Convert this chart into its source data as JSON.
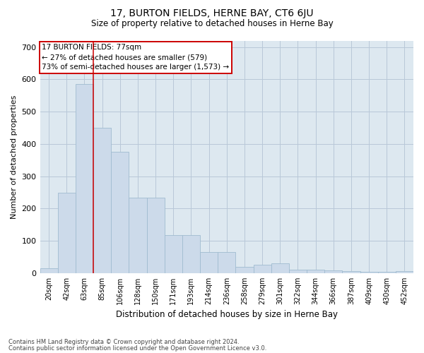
{
  "title": "17, BURTON FIELDS, HERNE BAY, CT6 6JU",
  "subtitle": "Size of property relative to detached houses in Herne Bay",
  "xlabel": "Distribution of detached houses by size in Herne Bay",
  "ylabel": "Number of detached properties",
  "footer_line1": "Contains HM Land Registry data © Crown copyright and database right 2024.",
  "footer_line2": "Contains public sector information licensed under the Open Government Licence v3.0.",
  "bar_color": "#ccdaea",
  "bar_edge_color": "#a0bcd0",
  "annotation_box_color": "#cc0000",
  "vline_color": "#cc0000",
  "grid_color": "#b8c8d8",
  "background_color": "#dde8f0",
  "annotation_title": "17 BURTON FIELDS: 77sqm",
  "annotation_line1": "← 27% of detached houses are smaller (579)",
  "annotation_line2": "73% of semi-detached houses are larger (1,573) →",
  "categories": [
    "20sqm",
    "42sqm",
    "63sqm",
    "85sqm",
    "106sqm",
    "128sqm",
    "150sqm",
    "171sqm",
    "193sqm",
    "214sqm",
    "236sqm",
    "258sqm",
    "279sqm",
    "301sqm",
    "322sqm",
    "344sqm",
    "366sqm",
    "387sqm",
    "409sqm",
    "430sqm",
    "452sqm"
  ],
  "values": [
    15,
    248,
    585,
    450,
    375,
    233,
    233,
    118,
    118,
    65,
    65,
    20,
    27,
    30,
    10,
    10,
    8,
    6,
    4,
    4,
    6
  ],
  "ylim": [
    0,
    720
  ],
  "yticks": [
    0,
    100,
    200,
    300,
    400,
    500,
    600,
    700
  ],
  "vline_x_index": 2.5,
  "title_fontsize": 10,
  "subtitle_fontsize": 8.5,
  "ylabel_fontsize": 8,
  "xlabel_fontsize": 8.5,
  "tick_fontsize": 7,
  "ytick_fontsize": 8,
  "footer_fontsize": 6,
  "ann_fontsize": 7.5
}
